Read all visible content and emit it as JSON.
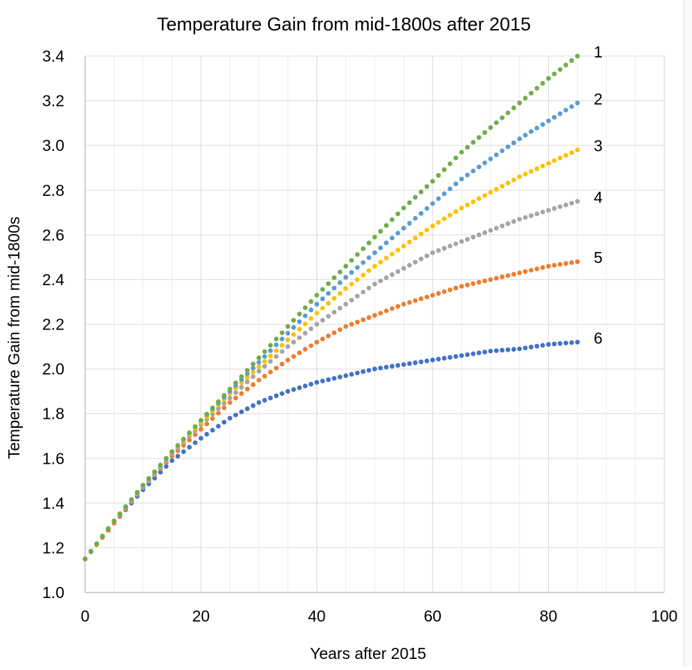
{
  "chart_data": {
    "type": "scatter",
    "title": "Temperature Gain from mid-1800s after 2015",
    "xlabel": "Years after 2015",
    "ylabel": "Temperature Gain from mid-1800s",
    "xlim": [
      0,
      100
    ],
    "ylim": [
      1.0,
      3.4
    ],
    "x_ticks": [
      "0",
      "20",
      "40",
      "60",
      "80",
      "100"
    ],
    "y_ticks": [
      "1.0",
      "1.2",
      "1.4",
      "1.6",
      "1.8",
      "2.0",
      "2.2",
      "2.4",
      "2.6",
      "2.8",
      "3.0",
      "3.2",
      "3.4"
    ],
    "x_tick_values": [
      0,
      20,
      40,
      60,
      80,
      100
    ],
    "y_tick_values": [
      1.0,
      1.2,
      1.4,
      1.6,
      1.8,
      2.0,
      2.2,
      2.4,
      2.6,
      2.8,
      3.0,
      3.2,
      3.4
    ],
    "grid": true,
    "x_minor_step": 5,
    "x": [
      0,
      5,
      10,
      15,
      20,
      25,
      30,
      35,
      40,
      45,
      50,
      55,
      60,
      65,
      70,
      75,
      80,
      85
    ],
    "series": [
      {
        "label": "1",
        "color": "#70ad47",
        "values": [
          1.15,
          1.32,
          1.48,
          1.63,
          1.77,
          1.91,
          2.05,
          2.19,
          2.33,
          2.46,
          2.59,
          2.72,
          2.84,
          2.97,
          3.08,
          3.19,
          3.3,
          3.4
        ]
      },
      {
        "label": "2",
        "color": "#5b9bd5",
        "values": [
          1.15,
          1.32,
          1.48,
          1.63,
          1.77,
          1.9,
          2.03,
          2.16,
          2.29,
          2.41,
          2.52,
          2.63,
          2.74,
          2.85,
          2.94,
          3.03,
          3.11,
          3.19
        ]
      },
      {
        "label": "3",
        "color": "#ffc000",
        "values": [
          1.15,
          1.32,
          1.48,
          1.63,
          1.76,
          1.89,
          2.01,
          2.13,
          2.25,
          2.36,
          2.46,
          2.55,
          2.64,
          2.72,
          2.79,
          2.86,
          2.92,
          2.98
        ]
      },
      {
        "label": "4",
        "color": "#a5a5a5",
        "values": [
          1.15,
          1.32,
          1.47,
          1.62,
          1.75,
          1.87,
          1.99,
          2.1,
          2.2,
          2.29,
          2.38,
          2.45,
          2.52,
          2.57,
          2.62,
          2.67,
          2.71,
          2.75
        ]
      },
      {
        "label": "5",
        "color": "#ed7d31",
        "values": [
          1.15,
          1.31,
          1.47,
          1.61,
          1.73,
          1.85,
          1.95,
          2.04,
          2.12,
          2.19,
          2.24,
          2.29,
          2.33,
          2.37,
          2.4,
          2.43,
          2.46,
          2.48
        ]
      },
      {
        "label": "6",
        "color": "#4472c4",
        "values": [
          1.15,
          1.31,
          1.46,
          1.59,
          1.69,
          1.78,
          1.85,
          1.9,
          1.94,
          1.97,
          2.0,
          2.02,
          2.04,
          2.06,
          2.08,
          2.09,
          2.11,
          2.12
        ]
      }
    ]
  }
}
